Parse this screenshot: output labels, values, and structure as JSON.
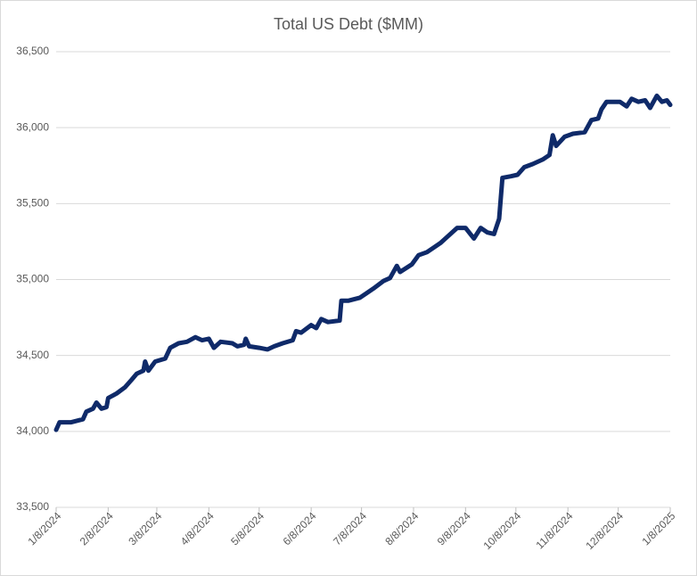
{
  "chart_data": {
    "type": "line",
    "title": "Total US Debt ($MM)",
    "x": [
      "1/8/2024",
      "1/10/2024",
      "1/17/2024",
      "1/24/2024",
      "1/26/2024",
      "1/30/2024",
      "2/1/2024",
      "2/4/2024",
      "2/7/2024",
      "2/8/2024",
      "2/13/2024",
      "2/18/2024",
      "2/22/2024",
      "2/25/2024",
      "2/29/2024",
      "3/1/2024",
      "3/3/2024",
      "3/7/2024",
      "3/13/2024",
      "3/16/2024",
      "3/21/2024",
      "3/26/2024",
      "3/31/2024",
      "4/4/2024",
      "4/8/2024",
      "4/11/2024",
      "4/15/2024",
      "4/22/2024",
      "4/25/2024",
      "4/29/2024",
      "4/30/2024",
      "5/2/2024",
      "5/8/2024",
      "5/13/2024",
      "5/17/2024",
      "5/22/2024",
      "5/28/2024",
      "5/30/2024",
      "6/2/2024",
      "6/8/2024",
      "6/11/2024",
      "6/14/2024",
      "6/18/2024",
      "6/25/2024",
      "6/26/2024",
      "6/30/2024",
      "7/7/2024",
      "7/11/2024",
      "7/15/2024",
      "7/21/2024",
      "7/25/2024",
      "7/29/2024",
      "7/31/2024",
      "8/7/2024",
      "8/11/2024",
      "8/16/2024",
      "8/20/2024",
      "8/24/2024",
      "8/28/2024",
      "9/3/2024",
      "9/8/2024",
      "9/13/2024",
      "9/17/2024",
      "9/21/2024",
      "9/25/2024",
      "9/28/2024",
      "9/30/2024",
      "10/5/2024",
      "10/9/2024",
      "10/13/2024",
      "10/18/2024",
      "10/24/2024",
      "10/28/2024",
      "10/30/2024",
      "11/1/2024",
      "11/6/2024",
      "11/11/2024",
      "11/18/2024",
      "11/22/2024",
      "11/26/2024",
      "11/28/2024",
      "12/1/2024",
      "12/9/2024",
      "12/13/2024",
      "12/16/2024",
      "12/20/2024",
      "12/24/2024",
      "12/27/2024",
      "12/31/2024",
      "1/3/2025",
      "1/6/2025",
      "1/8/2025"
    ],
    "series": [
      {
        "name": "Total US Debt",
        "color": "#0f2a69",
        "values": [
          34010,
          34060,
          34060,
          34080,
          34130,
          34150,
          34190,
          34150,
          34160,
          34220,
          34250,
          34290,
          34340,
          34380,
          34400,
          34460,
          34400,
          34460,
          34480,
          34550,
          34580,
          34590,
          34620,
          34600,
          34610,
          34550,
          34590,
          34580,
          34560,
          34570,
          34610,
          34560,
          34550,
          34540,
          34560,
          34580,
          34600,
          34660,
          34650,
          34700,
          34680,
          34740,
          34720,
          34730,
          34860,
          34860,
          34880,
          34910,
          34940,
          34990,
          35010,
          35090,
          35050,
          35100,
          35160,
          35180,
          35210,
          35240,
          35280,
          35340,
          35340,
          35270,
          35340,
          35310,
          35300,
          35400,
          35670,
          35680,
          35690,
          35740,
          35760,
          35790,
          35820,
          35950,
          35880,
          35940,
          35960,
          35970,
          36050,
          36060,
          36120,
          36170,
          36170,
          36140,
          36190,
          36170,
          36180,
          36130,
          36210,
          36170,
          36180,
          36150
        ]
      }
    ],
    "xlim": [
      "1/8/2024",
      "1/8/2025"
    ],
    "xticks": [
      "1/8/2024",
      "2/8/2024",
      "3/8/2024",
      "4/8/2024",
      "5/8/2024",
      "6/8/2024",
      "7/8/2024",
      "8/8/2024",
      "9/8/2024",
      "10/8/2024",
      "11/8/2024",
      "12/8/2024",
      "1/8/2025"
    ],
    "ylim": [
      33500,
      36500
    ],
    "yticks": [
      {
        "value": 33500,
        "label": "33,500"
      },
      {
        "value": 34000,
        "label": "34,000"
      },
      {
        "value": 34500,
        "label": "34,500"
      },
      {
        "value": 35000,
        "label": "35,000"
      },
      {
        "value": 35500,
        "label": "35,500"
      },
      {
        "value": 36000,
        "label": "36,000"
      },
      {
        "value": 36500,
        "label": "36,500"
      }
    ],
    "grid": true
  }
}
